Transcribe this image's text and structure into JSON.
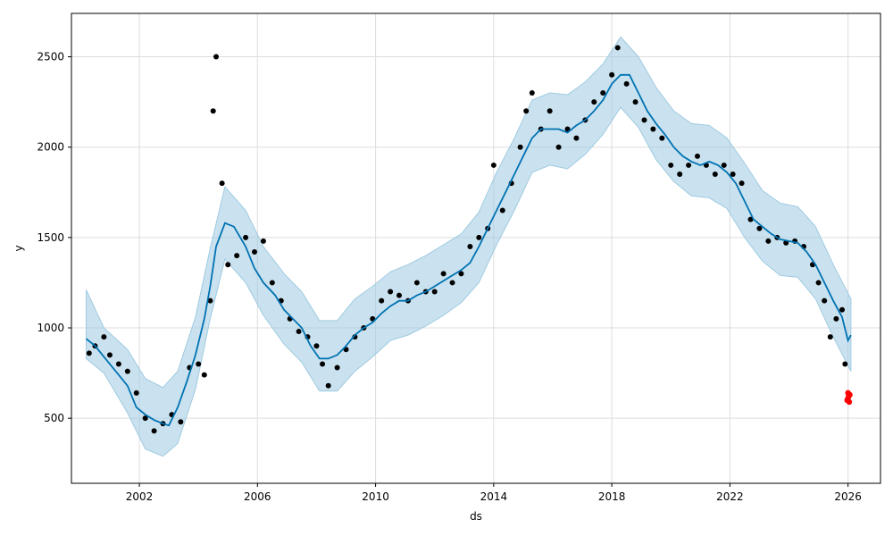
{
  "chart_data": {
    "type": "scatter",
    "xlabel": "ds",
    "ylabel": "y",
    "xlim": [
      1999.7,
      2027.1
    ],
    "ylim": [
      140,
      2740
    ],
    "x_ticks": [
      2002,
      2006,
      2010,
      2014,
      2018,
      2022,
      2026
    ],
    "x_tick_labels": [
      "2002",
      "2006",
      "2010",
      "2014",
      "2018",
      "2022",
      "2026"
    ],
    "y_ticks": [
      500,
      1000,
      1500,
      2000,
      2500
    ],
    "y_tick_labels": [
      "500",
      "1000",
      "1500",
      "2000",
      "2500"
    ],
    "grid": true,
    "colors": {
      "observed": "#000000",
      "forecast_line": "#0072B2",
      "uncertainty_band": "#9ecae1",
      "highlight": "#ff0000"
    },
    "series": [
      {
        "role": "observed",
        "x": [
          2000.3,
          2000.5,
          2000.8,
          2001.0,
          2001.3,
          2001.6,
          2001.9,
          2002.2,
          2002.5,
          2002.8,
          2003.1,
          2003.4,
          2003.7,
          2004.0,
          2004.2,
          2004.4,
          2004.5,
          2004.6,
          2004.8,
          2005.0,
          2005.3,
          2005.6,
          2005.9,
          2006.2,
          2006.5,
          2006.8,
          2007.1,
          2007.4,
          2007.7,
          2008.0,
          2008.2,
          2008.4,
          2008.7,
          2009.0,
          2009.3,
          2009.6,
          2009.9,
          2010.2,
          2010.5,
          2010.8,
          2011.1,
          2011.4,
          2011.7,
          2012.0,
          2012.3,
          2012.6,
          2012.9,
          2013.2,
          2013.5,
          2013.8,
          2014.0,
          2014.3,
          2014.6,
          2014.9,
          2015.1,
          2015.3,
          2015.6,
          2015.9,
          2016.2,
          2016.5,
          2016.8,
          2017.1,
          2017.4,
          2017.7,
          2018.0,
          2018.2,
          2018.5,
          2018.8,
          2019.1,
          2019.4,
          2019.7,
          2020.0,
          2020.3,
          2020.6,
          2020.9,
          2021.2,
          2021.5,
          2021.8,
          2022.1,
          2022.4,
          2022.7,
          2023.0,
          2023.3,
          2023.6,
          2023.9,
          2024.2,
          2024.5,
          2024.8,
          2025.0,
          2025.2,
          2025.4,
          2025.6,
          2025.8,
          2025.9,
          2026.0
        ],
        "y": [
          860,
          900,
          950,
          850,
          800,
          760,
          640,
          500,
          430,
          470,
          520,
          480,
          780,
          800,
          740,
          1150,
          2200,
          2500,
          1800,
          1350,
          1400,
          1500,
          1420,
          1480,
          1250,
          1150,
          1050,
          980,
          950,
          900,
          800,
          680,
          780,
          880,
          950,
          1000,
          1050,
          1150,
          1200,
          1180,
          1150,
          1250,
          1200,
          1200,
          1300,
          1250,
          1300,
          1450,
          1500,
          1550,
          1900,
          1650,
          1800,
          2000,
          2200,
          2300,
          2100,
          2200,
          2000,
          2100,
          2050,
          2150,
          2250,
          2300,
          2400,
          2550,
          2350,
          2250,
          2150,
          2100,
          2050,
          1900,
          1850,
          1900,
          1950,
          1900,
          1850,
          1900,
          1850,
          1800,
          1600,
          1550,
          1480,
          1500,
          1470,
          1480,
          1450,
          1350,
          1250,
          1150,
          950,
          1050,
          1100,
          800,
          610
        ]
      },
      {
        "role": "forecast",
        "x": [
          2000.2,
          2000.5,
          2000.8,
          2001.2,
          2001.6,
          2001.9,
          2002.2,
          2002.5,
          2002.8,
          2003.0,
          2003.3,
          2003.6,
          2003.9,
          2004.2,
          2004.4,
          2004.6,
          2004.9,
          2005.2,
          2005.6,
          2005.9,
          2006.2,
          2006.6,
          2006.9,
          2007.2,
          2007.5,
          2007.8,
          2008.1,
          2008.4,
          2008.7,
          2009.0,
          2009.3,
          2009.6,
          2009.9,
          2010.2,
          2010.5,
          2010.8,
          2011.1,
          2011.4,
          2011.7,
          2012.0,
          2012.3,
          2012.6,
          2012.9,
          2013.2,
          2013.5,
          2013.8,
          2014.1,
          2014.4,
          2014.7,
          2015.0,
          2015.3,
          2015.6,
          2015.9,
          2016.2,
          2016.5,
          2016.8,
          2017.1,
          2017.4,
          2017.7,
          2018.0,
          2018.3,
          2018.6,
          2018.9,
          2019.2,
          2019.5,
          2019.8,
          2020.1,
          2020.4,
          2020.7,
          2021.0,
          2021.3,
          2021.6,
          2021.9,
          2022.2,
          2022.5,
          2022.8,
          2023.1,
          2023.4,
          2023.7,
          2024.0,
          2024.3,
          2024.6,
          2024.9,
          2025.2,
          2025.5,
          2025.8,
          2026.0,
          2026.1
        ],
        "y": [
          940,
          900,
          840,
          760,
          680,
          560,
          520,
          490,
          470,
          460,
          560,
          700,
          850,
          1050,
          1230,
          1450,
          1580,
          1560,
          1450,
          1330,
          1250,
          1180,
          1100,
          1050,
          1000,
          900,
          830,
          830,
          850,
          900,
          960,
          1000,
          1030,
          1080,
          1120,
          1150,
          1150,
          1180,
          1200,
          1230,
          1260,
          1290,
          1320,
          1360,
          1450,
          1550,
          1650,
          1750,
          1850,
          1950,
          2050,
          2100,
          2100,
          2100,
          2080,
          2120,
          2150,
          2200,
          2260,
          2350,
          2400,
          2400,
          2300,
          2200,
          2130,
          2070,
          2000,
          1950,
          1920,
          1900,
          1920,
          1900,
          1860,
          1800,
          1700,
          1600,
          1560,
          1520,
          1490,
          1480,
          1470,
          1420,
          1350,
          1250,
          1150,
          1060,
          930,
          960
        ]
      },
      {
        "role": "uncertainty",
        "x": [
          2000.2,
          2000.8,
          2001.6,
          2002.2,
          2002.8,
          2003.3,
          2003.9,
          2004.4,
          2004.9,
          2005.6,
          2006.2,
          2006.9,
          2007.5,
          2008.1,
          2008.7,
          2009.3,
          2009.9,
          2010.5,
          2011.1,
          2011.7,
          2012.3,
          2012.9,
          2013.5,
          2014.1,
          2014.7,
          2015.3,
          2015.9,
          2016.5,
          2017.1,
          2017.7,
          2018.3,
          2018.9,
          2019.5,
          2020.1,
          2020.7,
          2021.3,
          2021.9,
          2022.5,
          2023.1,
          2023.7,
          2024.3,
          2024.9,
          2025.5,
          2026.1
        ],
        "upper": [
          1210,
          1000,
          880,
          720,
          670,
          760,
          1060,
          1440,
          1780,
          1650,
          1450,
          1300,
          1200,
          1040,
          1040,
          1160,
          1230,
          1310,
          1350,
          1400,
          1460,
          1520,
          1640,
          1860,
          2050,
          2260,
          2300,
          2290,
          2360,
          2460,
          2610,
          2500,
          2330,
          2200,
          2130,
          2120,
          2050,
          1910,
          1760,
          1690,
          1670,
          1560,
          1350,
          1160
        ],
        "lower": [
          830,
          750,
          530,
          330,
          290,
          360,
          660,
          1050,
          1380,
          1250,
          1070,
          910,
          810,
          650,
          650,
          760,
          840,
          930,
          960,
          1010,
          1070,
          1140,
          1250,
          1460,
          1650,
          1860,
          1900,
          1880,
          1960,
          2070,
          2220,
          2110,
          1930,
          1810,
          1730,
          1720,
          1660,
          1500,
          1370,
          1290,
          1280,
          1160,
          950,
          760
        ]
      },
      {
        "role": "highlight",
        "x": [
          2025.97,
          2026.0,
          2026.02,
          2026.04,
          2026.06
        ],
        "y": [
          600,
          640,
          620,
          590,
          630
        ]
      }
    ]
  }
}
